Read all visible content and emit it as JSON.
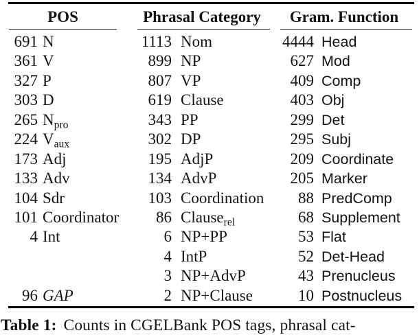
{
  "page": {
    "background": "#ffffff",
    "text_color": "#141414",
    "rule_color": "#000000"
  },
  "table": {
    "columns": [
      {
        "header": "POS",
        "rows": [
          {
            "count": "691",
            "label": "N"
          },
          {
            "count": "361",
            "label": "V"
          },
          {
            "count": "327",
            "label": "P"
          },
          {
            "count": "303",
            "label": "D"
          },
          {
            "count": "265",
            "label": "N",
            "sub": "pro"
          },
          {
            "count": "224",
            "label": "V",
            "sub": "aux"
          },
          {
            "count": "173",
            "label": "Adj"
          },
          {
            "count": "133",
            "label": "Adv"
          },
          {
            "count": "104",
            "label": "Sdr"
          },
          {
            "count": "101",
            "label": "Coordinator"
          },
          {
            "count": "4",
            "label": "Int"
          },
          {
            "count": "",
            "label": ""
          },
          {
            "count": "",
            "label": ""
          },
          {
            "count": "96",
            "label": "GAP"
          }
        ]
      },
      {
        "header": "Phrasal Category",
        "rows": [
          {
            "count": "1113",
            "label": "Nom"
          },
          {
            "count": "899",
            "label": "NP"
          },
          {
            "count": "807",
            "label": "VP"
          },
          {
            "count": "619",
            "label": "Clause"
          },
          {
            "count": "343",
            "label": "PP"
          },
          {
            "count": "302",
            "label": "DP"
          },
          {
            "count": "195",
            "label": "AdjP"
          },
          {
            "count": "134",
            "label": "AdvP"
          },
          {
            "count": "103",
            "label": "Coordination"
          },
          {
            "count": "86",
            "label": "Clause",
            "sub": "rel"
          },
          {
            "count": "6",
            "label": "NP+PP"
          },
          {
            "count": "4",
            "label": "IntP"
          },
          {
            "count": "3",
            "label": "NP+AdvP"
          },
          {
            "count": "2",
            "label": "NP+Clause"
          }
        ]
      },
      {
        "header": "Gram. Function",
        "rows": [
          {
            "count": "4444",
            "label": "Head"
          },
          {
            "count": "627",
            "label": "Mod"
          },
          {
            "count": "409",
            "label": "Comp"
          },
          {
            "count": "403",
            "label": "Obj"
          },
          {
            "count": "299",
            "label": "Det"
          },
          {
            "count": "295",
            "label": "Subj"
          },
          {
            "count": "209",
            "label": "Coordinate"
          },
          {
            "count": "205",
            "label": "Marker"
          },
          {
            "count": "88",
            "label": "PredComp"
          },
          {
            "count": "68",
            "label": "Supplement"
          },
          {
            "count": "53",
            "label": "Flat"
          },
          {
            "count": "52",
            "label": "Det-Head"
          },
          {
            "count": "43",
            "label": "Prenucleus"
          },
          {
            "count": "10",
            "label": "Postnucleus"
          }
        ]
      }
    ]
  },
  "caption": {
    "label": "Table 1:",
    "text": "Counts in CGELBank POS tags, phrasal cat-"
  }
}
